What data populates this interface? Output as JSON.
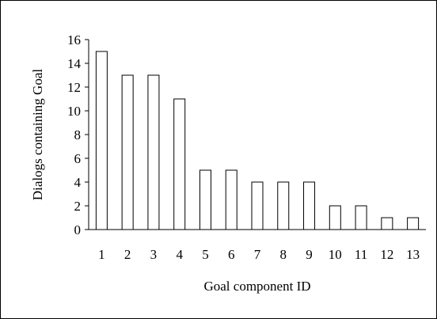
{
  "chart_data": {
    "type": "bar",
    "title": "",
    "xlabel": "Goal component ID",
    "ylabel": "Dialogs containing Goal",
    "categories": [
      "1",
      "2",
      "3",
      "4",
      "5",
      "6",
      "7",
      "8",
      "9",
      "10",
      "11",
      "12",
      "13"
    ],
    "values": [
      15,
      13,
      13,
      11,
      5,
      5,
      4,
      4,
      4,
      2,
      2,
      1,
      1
    ],
    "ylim": [
      0,
      16
    ],
    "yticks": [
      0,
      2,
      4,
      6,
      8,
      10,
      12,
      14,
      16
    ],
    "grid": false,
    "legend": "none",
    "bar_fill": "#ffffff",
    "bar_stroke": "#000000"
  }
}
